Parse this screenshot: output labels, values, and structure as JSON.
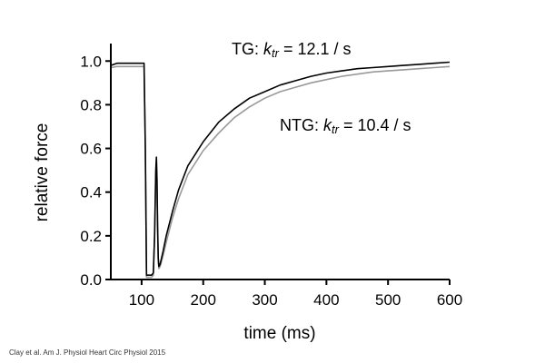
{
  "chart_data": {
    "type": "line",
    "xlabel": "time (ms)",
    "ylabel": "relative force",
    "xlim": [
      50,
      600
    ],
    "ylim": [
      0,
      1.08
    ],
    "xticks": [
      "100",
      "200",
      "300",
      "400",
      "500",
      "600"
    ],
    "yticks": [
      "0.0",
      "0.2",
      "0.4",
      "0.6",
      "0.8",
      "1.0"
    ],
    "grid": false,
    "series": [
      {
        "color": "#000000",
        "x": [
          50,
          60,
          80,
          100,
          104,
          106,
          108,
          112,
          116,
          119,
          121,
          123,
          124,
          125,
          126,
          127,
          128,
          130,
          135,
          140,
          150,
          160,
          175,
          200,
          225,
          250,
          275,
          300,
          325,
          350,
          375,
          400,
          425,
          450,
          475,
          500,
          525,
          550,
          575,
          600
        ],
        "y": [
          0.98,
          0.99,
          0.99,
          0.99,
          0.99,
          0.6,
          0.02,
          0.02,
          0.02,
          0.03,
          0.2,
          0.5,
          0.56,
          0.45,
          0.25,
          0.1,
          0.06,
          0.07,
          0.13,
          0.2,
          0.31,
          0.41,
          0.52,
          0.63,
          0.72,
          0.78,
          0.83,
          0.86,
          0.89,
          0.91,
          0.93,
          0.945,
          0.955,
          0.965,
          0.97,
          0.975,
          0.98,
          0.985,
          0.99,
          0.995
        ]
      },
      {
        "color": "#999999",
        "x": [
          50,
          60,
          80,
          100,
          104,
          106,
          108,
          112,
          116,
          119,
          121,
          123,
          124,
          125,
          126,
          127,
          128,
          130,
          135,
          140,
          150,
          160,
          175,
          200,
          225,
          250,
          275,
          300,
          325,
          350,
          375,
          400,
          425,
          450,
          475,
          500,
          525,
          550,
          575,
          600
        ],
        "y": [
          0.97,
          0.975,
          0.975,
          0.975,
          0.975,
          0.6,
          0.01,
          0.01,
          0.01,
          0.02,
          0.2,
          0.48,
          0.53,
          0.42,
          0.22,
          0.09,
          0.05,
          0.06,
          0.11,
          0.17,
          0.28,
          0.37,
          0.48,
          0.59,
          0.67,
          0.74,
          0.79,
          0.83,
          0.86,
          0.88,
          0.9,
          0.915,
          0.93,
          0.94,
          0.95,
          0.955,
          0.96,
          0.965,
          0.97,
          0.975
        ]
      }
    ],
    "annotations": [
      {
        "prefix": "TG: ",
        "symbol": "k",
        "subscript": "tr",
        "suffix": " = 12.1 / s"
      },
      {
        "prefix": "NTG: ",
        "symbol": "k",
        "subscript": "tr",
        "suffix": " = 10.4 / s"
      }
    ]
  },
  "source_citation": "Clay et al. Am J. Physiol Heart Circ Physiol 2015"
}
